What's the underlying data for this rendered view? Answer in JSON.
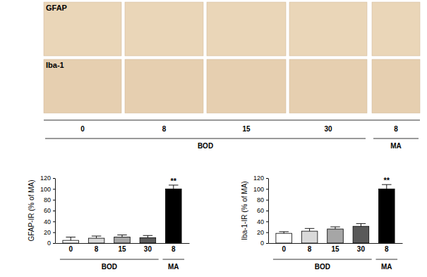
{
  "image_panel": {
    "rows": [
      "GFAP",
      "Iba-1"
    ],
    "columns": [
      "0",
      "8",
      "15",
      "30",
      "8"
    ],
    "groups": [
      "BOD",
      "BOD",
      "BOD",
      "BOD",
      "MA"
    ]
  },
  "chart_data": [
    {
      "type": "bar",
      "ylabel": "GFAP-IR (% of MA)",
      "categories": [
        "0",
        "8",
        "15",
        "30",
        "8"
      ],
      "groups": [
        "BOD",
        "BOD",
        "BOD",
        "BOD",
        "MA"
      ],
      "values": [
        5,
        9,
        11,
        10,
        100
      ],
      "errors": [
        6,
        4,
        4,
        4,
        7
      ],
      "significance": [
        null,
        null,
        null,
        null,
        "**"
      ],
      "colors": [
        "#ffffff",
        "#d9d9d9",
        "#a6a6a6",
        "#595959",
        "#000000"
      ],
      "ylim": [
        0,
        120
      ],
      "yticks": [
        0,
        20,
        40,
        60,
        80,
        100,
        120
      ],
      "grid": false
    },
    {
      "type": "bar",
      "ylabel": "Iba-1-IR (% of MA)",
      "categories": [
        "0",
        "8",
        "15",
        "30",
        "8"
      ],
      "groups": [
        "BOD",
        "BOD",
        "BOD",
        "BOD",
        "MA"
      ],
      "values": [
        18,
        22,
        26,
        31,
        100
      ],
      "errors": [
        3,
        5,
        4,
        5,
        8
      ],
      "significance": [
        null,
        null,
        null,
        null,
        "**"
      ],
      "colors": [
        "#ffffff",
        "#d9d9d9",
        "#a6a6a6",
        "#595959",
        "#000000"
      ],
      "ylim": [
        0,
        120
      ],
      "yticks": [
        0,
        20,
        40,
        60,
        80,
        100,
        120
      ],
      "grid": false
    }
  ]
}
